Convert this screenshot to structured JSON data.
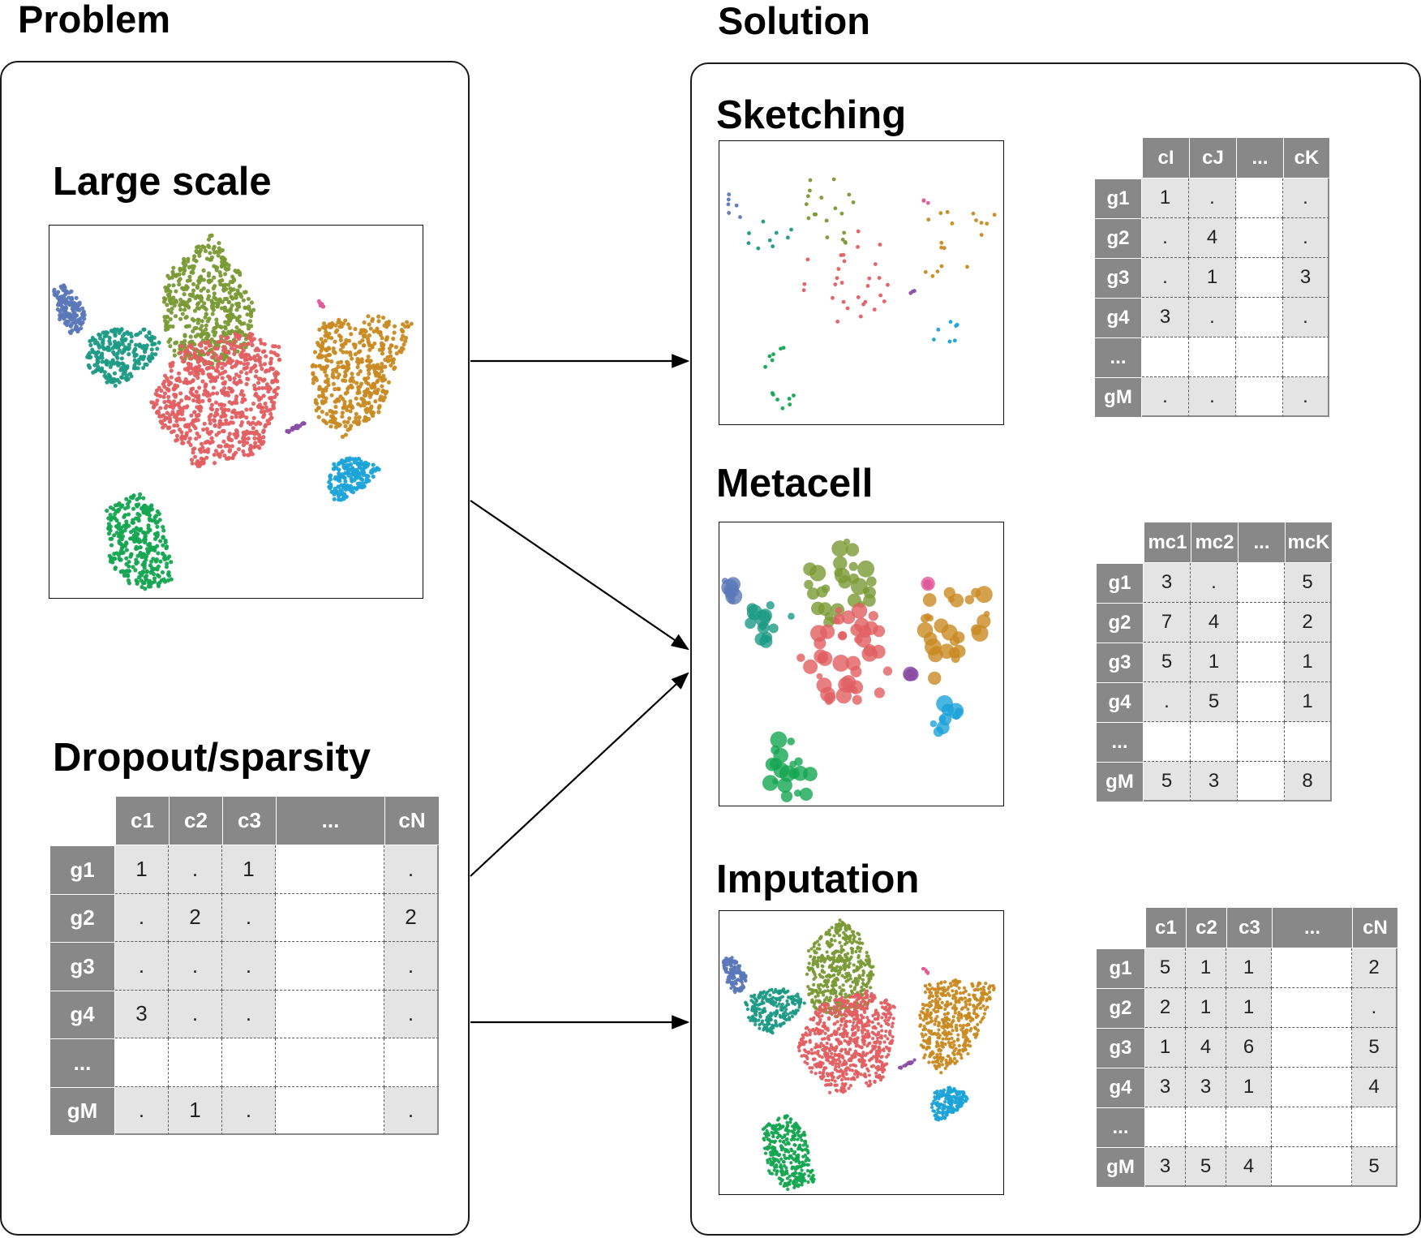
{
  "problem": {
    "header": "Problem",
    "large_scale": {
      "title": "Large scale"
    },
    "dropout": {
      "title": "Dropout/sparsity",
      "table": {
        "columns": [
          "c1",
          "c2",
          "c3",
          "...",
          "cN"
        ],
        "rows": [
          {
            "label": "g1",
            "values": [
              "1",
              ".",
              "1",
              "",
              "."
            ]
          },
          {
            "label": "g2",
            "values": [
              ".",
              "2",
              ".",
              "",
              "2"
            ]
          },
          {
            "label": "g3",
            "values": [
              ".",
              ".",
              ".",
              "",
              "."
            ]
          },
          {
            "label": "g4",
            "values": [
              "3",
              ".",
              ".",
              "",
              "."
            ]
          },
          {
            "label": "...",
            "values": [
              "",
              "",
              "",
              "",
              ""
            ]
          },
          {
            "label": "gM",
            "values": [
              ".",
              "1",
              ".",
              "",
              "."
            ]
          }
        ]
      }
    }
  },
  "solution": {
    "header": "Solution",
    "sketching": {
      "title": "Sketching",
      "table": {
        "columns": [
          "cI",
          "cJ",
          "...",
          "cK"
        ],
        "rows": [
          {
            "label": "g1",
            "values": [
              "1",
              ".",
              "",
              "."
            ]
          },
          {
            "label": "g2",
            "values": [
              ".",
              "4",
              "",
              "."
            ]
          },
          {
            "label": "g3",
            "values": [
              ".",
              "1",
              "",
              "3"
            ]
          },
          {
            "label": "g4",
            "values": [
              "3",
              ".",
              "",
              "."
            ]
          },
          {
            "label": "...",
            "values": [
              "",
              "",
              "",
              ""
            ]
          },
          {
            "label": "gM",
            "values": [
              ".",
              ".",
              "",
              "."
            ]
          }
        ]
      }
    },
    "metacell": {
      "title": "Metacell",
      "table": {
        "columns": [
          "mc1",
          "mc2",
          "...",
          "mcK"
        ],
        "rows": [
          {
            "label": "g1",
            "values": [
              "3",
              ".",
              "",
              "5"
            ]
          },
          {
            "label": "g2",
            "values": [
              "7",
              "4",
              "",
              "2"
            ]
          },
          {
            "label": "g3",
            "values": [
              "5",
              "1",
              "",
              "1"
            ]
          },
          {
            "label": "g4",
            "values": [
              ".",
              "5",
              "",
              "1"
            ]
          },
          {
            "label": "...",
            "values": [
              "",
              "",
              "",
              ""
            ]
          },
          {
            "label": "gM",
            "values": [
              "5",
              "3",
              "",
              "8"
            ]
          }
        ]
      }
    },
    "imputation": {
      "title": "Imputation",
      "table": {
        "columns": [
          "c1",
          "c2",
          "c3",
          "...",
          "cN"
        ],
        "rows": [
          {
            "label": "g1",
            "values": [
              "5",
              "1",
              "1",
              "",
              "2"
            ]
          },
          {
            "label": "g2",
            "values": [
              "2",
              "1",
              "1",
              "",
              "."
            ]
          },
          {
            "label": "g3",
            "values": [
              "1",
              "4",
              "6",
              "",
              "5"
            ]
          },
          {
            "label": "g4",
            "values": [
              "3",
              "3",
              "1",
              "",
              "4"
            ]
          },
          {
            "label": "...",
            "values": [
              "",
              "",
              "",
              "",
              ""
            ]
          },
          {
            "label": "gM",
            "values": [
              "3",
              "5",
              "4",
              "",
              "5"
            ]
          }
        ]
      }
    }
  },
  "cluster_colors": {
    "blue": "#5b78b8",
    "teal": "#1c9a85",
    "olive": "#7a9a35",
    "red": "#e15f62",
    "green": "#14a551",
    "orange": "#c98a22",
    "cyan": "#1ca3d8",
    "purple": "#8a4ea5",
    "pink": "#e05a9a"
  }
}
